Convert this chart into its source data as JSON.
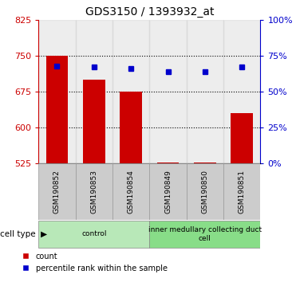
{
  "title": "GDS3150 / 1393932_at",
  "samples": [
    "GSM190852",
    "GSM190853",
    "GSM190854",
    "GSM190849",
    "GSM190850",
    "GSM190851"
  ],
  "count_values": [
    750,
    700,
    675,
    527,
    528,
    630
  ],
  "percentile_values": [
    68,
    67,
    66,
    64,
    64,
    67
  ],
  "y_min": 525,
  "y_max": 825,
  "y_ticks": [
    525,
    600,
    675,
    750,
    825
  ],
  "y2_ticks": [
    0,
    25,
    50,
    75,
    100
  ],
  "y2_labels": [
    "0%",
    "25%",
    "50%",
    "75%",
    "100%"
  ],
  "bar_color": "#cc0000",
  "dot_color": "#0000cc",
  "left_axis_color": "#cc0000",
  "right_axis_color": "#0000cc",
  "groups": [
    {
      "label": "control",
      "indices": [
        0,
        1,
        2
      ],
      "color": "#b8e8b8"
    },
    {
      "label": "inner medullary collecting duct\ncell",
      "indices": [
        3,
        4,
        5
      ],
      "color": "#88dd88"
    }
  ],
  "cell_type_label": "cell type",
  "legend_count": "count",
  "legend_percentile": "percentile rank within the sample",
  "bar_width": 0.6,
  "figsize": [
    3.71,
    3.54
  ],
  "dpi": 100,
  "gridline_values": [
    600,
    675,
    750
  ],
  "col_bg_color": "#cccccc",
  "col_bg_alpha": 0.35
}
